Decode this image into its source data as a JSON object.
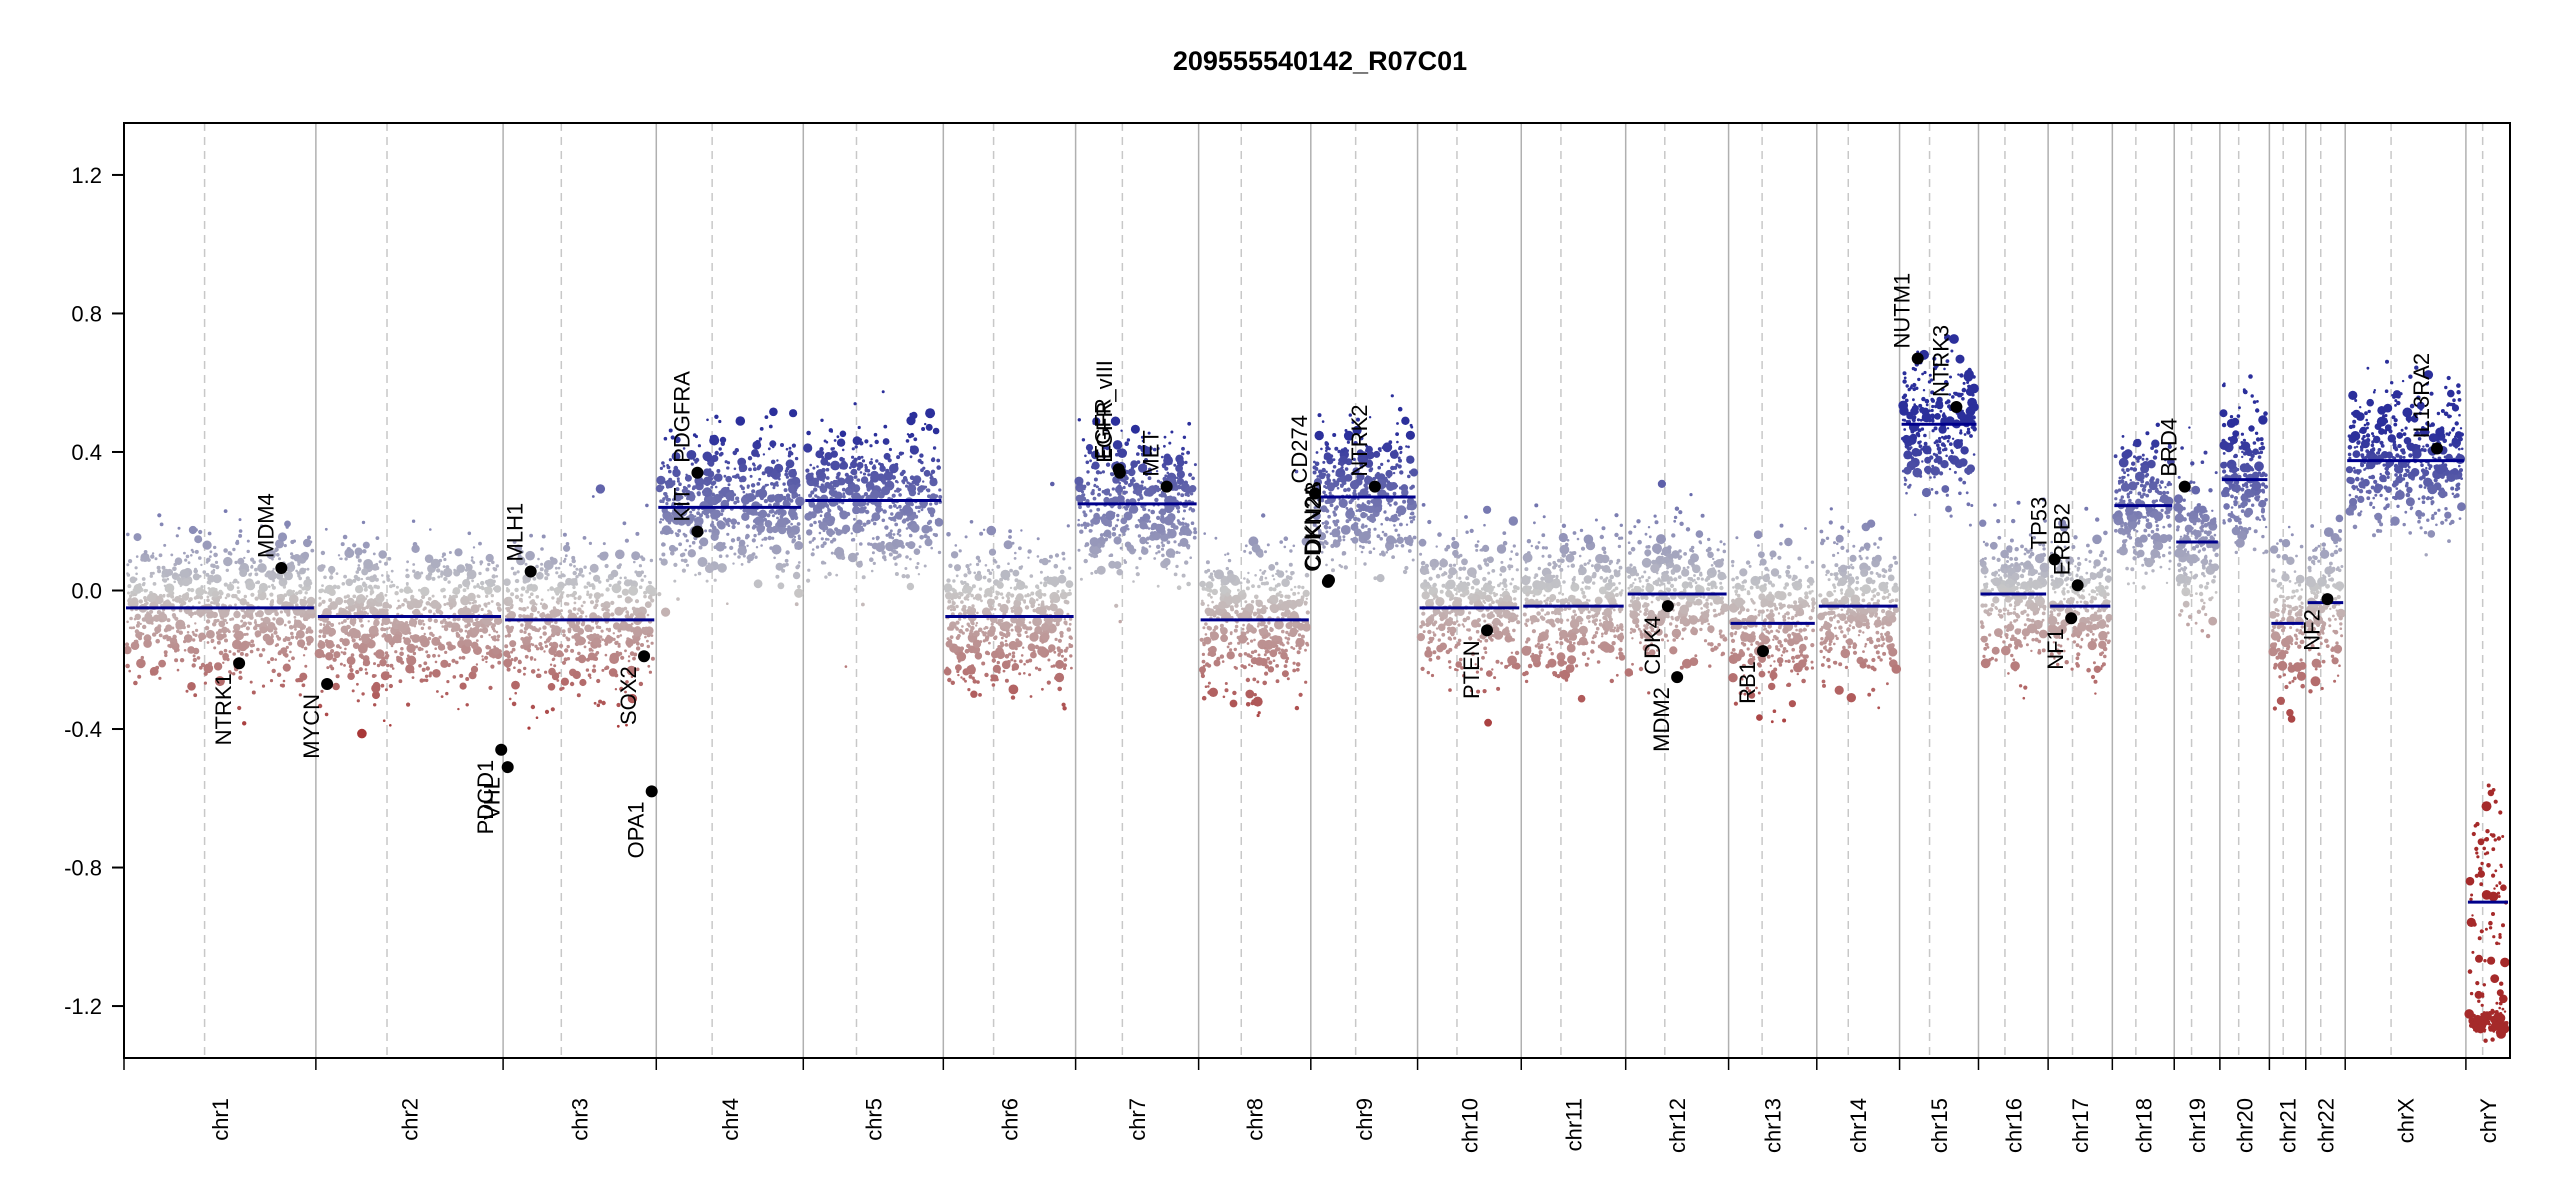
{
  "chart_data": {
    "type": "scatter",
    "title": "209555540142_R07C01",
    "xlabel": "",
    "ylabel": "",
    "ylim": [
      -1.35,
      1.35
    ],
    "y_ticks": [
      -1.2,
      -0.8,
      -0.4,
      0.0,
      0.4,
      0.8,
      1.2
    ],
    "y_tick_labels": [
      "-1.2",
      "-0.8",
      "-0.4",
      "0.0",
      "0.4",
      "0.8",
      "1.2"
    ],
    "colors": {
      "gain": "#2b2f9b",
      "loss": "#a52a2a",
      "neutral": "#c8c8c8",
      "segment": "#00008b",
      "gene_point": "#000000",
      "boundary": "#b0b0b0"
    },
    "chromosomes": [
      {
        "name": "chr1",
        "rel_length": 248,
        "segment_mean": -0.05
      },
      {
        "name": "chr2",
        "rel_length": 242,
        "segment_mean": -0.075
      },
      {
        "name": "chr3",
        "rel_length": 198,
        "segment_mean": -0.085
      },
      {
        "name": "chr4",
        "rel_length": 190,
        "segment_mean": 0.24
      },
      {
        "name": "chr5",
        "rel_length": 181,
        "segment_mean": 0.26
      },
      {
        "name": "chr6",
        "rel_length": 171,
        "segment_mean": -0.075
      },
      {
        "name": "chr7",
        "rel_length": 159,
        "segment_mean": 0.25
      },
      {
        "name": "chr8",
        "rel_length": 145,
        "segment_mean": -0.085
      },
      {
        "name": "chr9",
        "rel_length": 138,
        "segment_mean": 0.27
      },
      {
        "name": "chr10",
        "rel_length": 134,
        "segment_mean": -0.05
      },
      {
        "name": "chr11",
        "rel_length": 135,
        "segment_mean": -0.045
      },
      {
        "name": "chr12",
        "rel_length": 133,
        "segment_mean": -0.01
      },
      {
        "name": "chr13",
        "rel_length": 114,
        "segment_mean": -0.095
      },
      {
        "name": "chr14",
        "rel_length": 107,
        "segment_mean": -0.045
      },
      {
        "name": "chr15",
        "rel_length": 102,
        "segment_mean": 0.48
      },
      {
        "name": "chr16",
        "rel_length": 90,
        "segment_mean": -0.01
      },
      {
        "name": "chr17",
        "rel_length": 83,
        "segment_mean": -0.045
      },
      {
        "name": "chr18",
        "rel_length": 80,
        "segment_mean": 0.245
      },
      {
        "name": "chr19",
        "rel_length": 59,
        "segment_mean": 0.14
      },
      {
        "name": "chr20",
        "rel_length": 64,
        "segment_mean": 0.32
      },
      {
        "name": "chr21",
        "rel_length": 47,
        "segment_mean": -0.095
      },
      {
        "name": "chr22",
        "rel_length": 51,
        "segment_mean": -0.035
      },
      {
        "name": "chrX",
        "rel_length": 156,
        "segment_mean": 0.375
      },
      {
        "name": "chrY",
        "rel_length": 57,
        "segment_mean": -0.9
      }
    ],
    "genes": [
      {
        "name": "NTRK1",
        "chrom": "chr1",
        "pos": 0.6,
        "value": -0.21
      },
      {
        "name": "MDM4",
        "chrom": "chr1",
        "pos": 0.82,
        "value": 0.065
      },
      {
        "name": "MYCN",
        "chrom": "chr2",
        "pos": 0.06,
        "value": -0.27
      },
      {
        "name": "PDCD1",
        "chrom": "chr2",
        "pos": 0.99,
        "value": -0.46
      },
      {
        "name": "VHL",
        "chrom": "chr3",
        "pos": 0.03,
        "value": -0.51
      },
      {
        "name": "MLH1",
        "chrom": "chr3",
        "pos": 0.18,
        "value": 0.055
      },
      {
        "name": "SOX2",
        "chrom": "chr3",
        "pos": 0.92,
        "value": -0.19
      },
      {
        "name": "OPA1",
        "chrom": "chr3",
        "pos": 0.97,
        "value": -0.58
      },
      {
        "name": "KIT",
        "chrom": "chr4",
        "pos": 0.28,
        "value": 0.17
      },
      {
        "name": "PDGFRA",
        "chrom": "chr4",
        "pos": 0.28,
        "value": 0.34
      },
      {
        "name": "EGFR",
        "chrom": "chr7",
        "pos": 0.35,
        "value": 0.35
      },
      {
        "name": "EGFR_vIII",
        "chrom": "chr7",
        "pos": 0.36,
        "value": 0.34
      },
      {
        "name": "MET",
        "chrom": "chr7",
        "pos": 0.74,
        "value": 0.3
      },
      {
        "name": "CDKN2A",
        "chrom": "chr9",
        "pos": 0.16,
        "value": 0.025
      },
      {
        "name": "CDKN2B",
        "chrom": "chr9",
        "pos": 0.17,
        "value": 0.03
      },
      {
        "name": "CD274",
        "chrom": "chr9",
        "pos": 0.04,
        "value": 0.28
      },
      {
        "name": "NTRK2",
        "chrom": "chr9",
        "pos": 0.6,
        "value": 0.3
      },
      {
        "name": "PTEN",
        "chrom": "chr10",
        "pos": 0.67,
        "value": -0.115
      },
      {
        "name": "MDM2",
        "chrom": "chr12",
        "pos": 0.5,
        "value": -0.25
      },
      {
        "name": "CDK4",
        "chrom": "chr12",
        "pos": 0.41,
        "value": -0.045
      },
      {
        "name": "RB1",
        "chrom": "chr13",
        "pos": 0.39,
        "value": -0.175
      },
      {
        "name": "NUTM1",
        "chrom": "chr15",
        "pos": 0.23,
        "value": 0.67
      },
      {
        "name": "NTRK3",
        "chrom": "chr15",
        "pos": 0.72,
        "value": 0.53
      },
      {
        "name": "TP53",
        "chrom": "chr17",
        "pos": 0.1,
        "value": 0.09
      },
      {
        "name": "NF1",
        "chrom": "chr17",
        "pos": 0.36,
        "value": -0.08
      },
      {
        "name": "ERBB2",
        "chrom": "chr17",
        "pos": 0.46,
        "value": 0.015
      },
      {
        "name": "BRD4",
        "chrom": "chr19",
        "pos": 0.23,
        "value": 0.3
      },
      {
        "name": "NF2",
        "chrom": "chr22",
        "pos": 0.55,
        "value": -0.025
      },
      {
        "name": "IL13RA2",
        "chrom": "chrX",
        "pos": 0.76,
        "value": 0.41
      }
    ],
    "grid": false
  }
}
